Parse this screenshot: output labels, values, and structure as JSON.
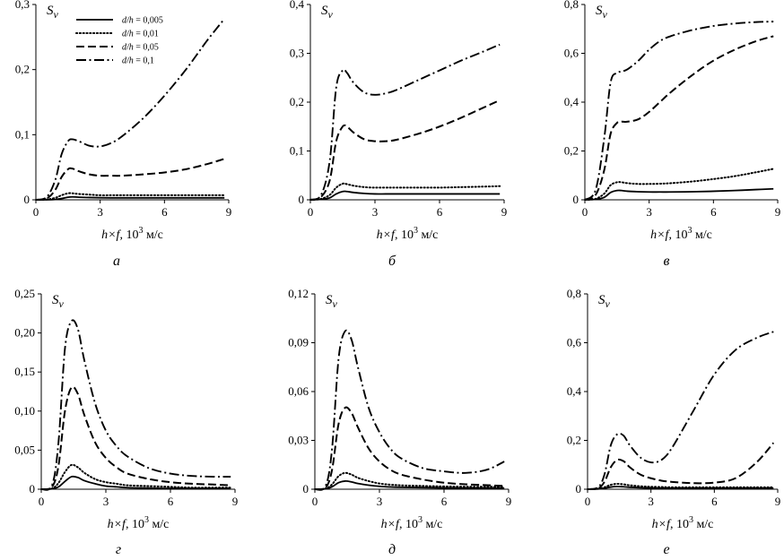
{
  "legend": {
    "prefix": "d/h",
    "entries": [
      {
        "label": "d/h = 0,005",
        "value": "= 0,005",
        "style": "solid"
      },
      {
        "label": "d/h = 0,01",
        "value": "= 0,01",
        "style": "dotted"
      },
      {
        "label": "d/h = 0,05",
        "value": "= 0,05",
        "style": "dashed"
      },
      {
        "label": "d/h = 0,1",
        "value": "= 0,1",
        "style": "dashdot"
      }
    ]
  },
  "x_axis": {
    "label_italic": "h×f",
    "label_rest": ", 10",
    "label_exp": "3",
    "label_unit": " м/с"
  },
  "chart_data": [
    {
      "type": "line",
      "panel_label": "а",
      "ylabel": "S",
      "ylabel_sub": "v",
      "ylim": [
        0,
        0.3
      ],
      "xlim": [
        0,
        9
      ],
      "yticks": [
        "0",
        "0,1",
        "0,2",
        "0,3"
      ],
      "ytick_values": [
        0,
        0.1,
        0.2,
        0.3
      ],
      "xticks": [
        "0",
        "3",
        "6",
        "9"
      ],
      "xtick_values": [
        0,
        3,
        6,
        9
      ],
      "x": [
        0,
        0.5,
        0.9,
        1.2,
        1.5,
        1.7,
        2.0,
        2.5,
        3.0,
        3.5,
        4.0,
        5.0,
        6.0,
        7.0,
        8.0,
        8.8
      ],
      "series": [
        {
          "name": "d/h = 0,005",
          "style": "solid",
          "values": [
            0,
            0,
            0.0005,
            0.002,
            0.004,
            0.0045,
            0.004,
            0.0035,
            0.0032,
            0.003,
            0.003,
            0.003,
            0.003,
            0.003,
            0.003,
            0.003
          ]
        },
        {
          "name": "d/h = 0,01",
          "style": "dotted",
          "values": [
            0,
            0.0005,
            0.003,
            0.007,
            0.01,
            0.01,
            0.009,
            0.008,
            0.007,
            0.007,
            0.007,
            0.007,
            0.007,
            0.007,
            0.007,
            0.007
          ]
        },
        {
          "name": "d/h = 0,05",
          "style": "dashed",
          "values": [
            0,
            0.002,
            0.015,
            0.035,
            0.047,
            0.048,
            0.044,
            0.039,
            0.037,
            0.037,
            0.037,
            0.039,
            0.042,
            0.047,
            0.055,
            0.063
          ]
        },
        {
          "name": "d/h = 0,1",
          "style": "dashdot",
          "values": [
            0,
            0.004,
            0.03,
            0.07,
            0.09,
            0.093,
            0.09,
            0.083,
            0.082,
            0.087,
            0.097,
            0.125,
            0.16,
            0.2,
            0.245,
            0.278
          ]
        }
      ]
    },
    {
      "type": "line",
      "panel_label": "б",
      "ylabel": "S",
      "ylabel_sub": "v",
      "ylim": [
        0,
        0.4
      ],
      "xlim": [
        0,
        9
      ],
      "yticks": [
        "0",
        "0,1",
        "0,2",
        "0,3",
        "0,4"
      ],
      "ytick_values": [
        0,
        0.1,
        0.2,
        0.3,
        0.4
      ],
      "xticks": [
        "0",
        "3",
        "6",
        "9"
      ],
      "xtick_values": [
        0,
        3,
        6,
        9
      ],
      "x": [
        0,
        0.5,
        0.9,
        1.2,
        1.5,
        1.7,
        2.0,
        2.5,
        3.0,
        3.5,
        4.0,
        5.0,
        6.0,
        7.0,
        8.0,
        8.8
      ],
      "series": [
        {
          "name": "d/h = 0,005",
          "style": "solid",
          "values": [
            0,
            0.001,
            0.004,
            0.012,
            0.017,
            0.017,
            0.015,
            0.013,
            0.012,
            0.012,
            0.012,
            0.012,
            0.012,
            0.012,
            0.012,
            0.012
          ]
        },
        {
          "name": "d/h = 0,01",
          "style": "dotted",
          "values": [
            0,
            0.002,
            0.01,
            0.025,
            0.033,
            0.032,
            0.029,
            0.026,
            0.025,
            0.025,
            0.025,
            0.025,
            0.025,
            0.026,
            0.027,
            0.028
          ]
        },
        {
          "name": "d/h = 0,05",
          "style": "dashed",
          "values": [
            0,
            0.006,
            0.04,
            0.12,
            0.15,
            0.15,
            0.138,
            0.124,
            0.12,
            0.12,
            0.123,
            0.135,
            0.15,
            0.168,
            0.188,
            0.204
          ]
        },
        {
          "name": "d/h = 0,1",
          "style": "dashdot",
          "values": [
            0,
            0.01,
            0.08,
            0.23,
            0.265,
            0.26,
            0.24,
            0.22,
            0.215,
            0.218,
            0.225,
            0.245,
            0.265,
            0.285,
            0.303,
            0.318
          ]
        }
      ]
    },
    {
      "type": "line",
      "panel_label": "в",
      "ylabel": "S",
      "ylabel_sub": "v",
      "ylim": [
        0,
        0.8
      ],
      "xlim": [
        0,
        9
      ],
      "yticks": [
        "0",
        "0,2",
        "0,4",
        "0,6",
        "0,8"
      ],
      "ytick_values": [
        0,
        0.2,
        0.4,
        0.6,
        0.8
      ],
      "xticks": [
        "0",
        "3",
        "6",
        "9"
      ],
      "xtick_values": [
        0,
        3,
        6,
        9
      ],
      "x": [
        0,
        0.5,
        0.9,
        1.2,
        1.5,
        1.7,
        2.0,
        2.5,
        3.0,
        3.5,
        4.0,
        5.0,
        6.0,
        7.0,
        8.0,
        8.8
      ],
      "series": [
        {
          "name": "d/h = 0,005",
          "style": "solid",
          "values": [
            0,
            0.002,
            0.01,
            0.03,
            0.038,
            0.038,
            0.035,
            0.033,
            0.032,
            0.032,
            0.032,
            0.033,
            0.035,
            0.038,
            0.042,
            0.045
          ]
        },
        {
          "name": "d/h = 0,01",
          "style": "dotted",
          "values": [
            0,
            0.004,
            0.025,
            0.06,
            0.072,
            0.072,
            0.068,
            0.065,
            0.065,
            0.066,
            0.068,
            0.075,
            0.085,
            0.097,
            0.113,
            0.127
          ]
        },
        {
          "name": "d/h = 0,05",
          "style": "dashed",
          "values": [
            0,
            0.02,
            0.12,
            0.27,
            0.315,
            0.32,
            0.32,
            0.33,
            0.36,
            0.4,
            0.44,
            0.51,
            0.57,
            0.615,
            0.65,
            0.67
          ]
        },
        {
          "name": "d/h = 0,1",
          "style": "dashdot",
          "values": [
            0,
            0.04,
            0.25,
            0.48,
            0.52,
            0.525,
            0.535,
            0.57,
            0.615,
            0.65,
            0.67,
            0.695,
            0.712,
            0.722,
            0.728,
            0.73
          ]
        }
      ]
    },
    {
      "type": "line",
      "panel_label": "г",
      "ylabel": "S",
      "ylabel_sub": "v",
      "ylim": [
        0,
        0.25
      ],
      "xlim": [
        0,
        9
      ],
      "yticks": [
        "0",
        "0,05",
        "0,10",
        "0,15",
        "0,20",
        "0,25"
      ],
      "ytick_values": [
        0,
        0.05,
        0.1,
        0.15,
        0.2,
        0.25
      ],
      "xticks": [
        "0",
        "3",
        "6",
        "9"
      ],
      "xtick_values": [
        0,
        3,
        6,
        9
      ],
      "x": [
        0,
        0.5,
        0.8,
        1.1,
        1.4,
        1.7,
        2.0,
        2.5,
        3.0,
        3.5,
        4.0,
        5.0,
        6.0,
        7.0,
        8.0,
        8.8
      ],
      "series": [
        {
          "name": "d/h = 0,005",
          "style": "solid",
          "values": [
            0,
            0.0005,
            0.003,
            0.01,
            0.016,
            0.015,
            0.011,
            0.007,
            0.004,
            0.003,
            0.002,
            0.0015,
            0.001,
            0.001,
            0.001,
            0.001
          ]
        },
        {
          "name": "d/h = 0,01",
          "style": "dotted",
          "values": [
            0,
            0.001,
            0.008,
            0.022,
            0.031,
            0.028,
            0.021,
            0.013,
            0.009,
            0.007,
            0.005,
            0.004,
            0.003,
            0.002,
            0.002,
            0.002
          ]
        },
        {
          "name": "d/h = 0,05",
          "style": "dashed",
          "values": [
            0,
            0.003,
            0.03,
            0.1,
            0.13,
            0.122,
            0.095,
            0.06,
            0.04,
            0.028,
            0.02,
            0.013,
            0.009,
            0.007,
            0.006,
            0.005
          ]
        },
        {
          "name": "d/h = 0,1",
          "style": "dashdot",
          "values": [
            0,
            0.005,
            0.06,
            0.18,
            0.215,
            0.205,
            0.165,
            0.11,
            0.075,
            0.055,
            0.042,
            0.027,
            0.02,
            0.017,
            0.016,
            0.016
          ]
        }
      ]
    },
    {
      "type": "line",
      "panel_label": "д",
      "ylabel": "S",
      "ylabel_sub": "v",
      "ylim": [
        0,
        0.12
      ],
      "xlim": [
        0,
        9
      ],
      "yticks": [
        "0",
        "0,03",
        "0,06",
        "0,09",
        "0,12"
      ],
      "ytick_values": [
        0,
        0.03,
        0.06,
        0.09,
        0.12
      ],
      "xticks": [
        "0",
        "3",
        "6",
        "9"
      ],
      "xtick_values": [
        0,
        3,
        6,
        9
      ],
      "x": [
        0,
        0.5,
        0.8,
        1.1,
        1.4,
        1.7,
        2.0,
        2.5,
        3.0,
        3.5,
        4.0,
        5.0,
        6.0,
        7.0,
        8.0,
        8.8
      ],
      "series": [
        {
          "name": "d/h = 0,005",
          "style": "solid",
          "values": [
            0,
            0.0002,
            0.0015,
            0.004,
            0.005,
            0.0045,
            0.0035,
            0.0025,
            0.0018,
            0.0014,
            0.0012,
            0.001,
            0.0008,
            0.0007,
            0.0007,
            0.0007
          ]
        },
        {
          "name": "d/h = 0,01",
          "style": "dotted",
          "values": [
            0,
            0.0004,
            0.003,
            0.008,
            0.01,
            0.009,
            0.007,
            0.005,
            0.0035,
            0.0028,
            0.0024,
            0.002,
            0.0017,
            0.0015,
            0.0015,
            0.0015
          ]
        },
        {
          "name": "d/h = 0,05",
          "style": "dashed",
          "values": [
            0,
            0.001,
            0.012,
            0.04,
            0.05,
            0.047,
            0.038,
            0.025,
            0.017,
            0.012,
            0.009,
            0.006,
            0.004,
            0.003,
            0.0025,
            0.002
          ]
        },
        {
          "name": "d/h = 0,1",
          "style": "dashdot",
          "values": [
            0,
            0.002,
            0.025,
            0.08,
            0.097,
            0.092,
            0.075,
            0.05,
            0.035,
            0.025,
            0.019,
            0.013,
            0.011,
            0.01,
            0.012,
            0.017
          ]
        }
      ]
    },
    {
      "type": "line",
      "panel_label": "е",
      "ylabel": "S",
      "ylabel_sub": "v",
      "ylim": [
        0,
        0.8
      ],
      "xlim": [
        0,
        9
      ],
      "yticks": [
        "0",
        "0,2",
        "0,4",
        "0,6",
        "0,8"
      ],
      "ytick_values": [
        0,
        0.2,
        0.4,
        0.6,
        0.8
      ],
      "xticks": [
        "0",
        "3",
        "6",
        "9"
      ],
      "xtick_values": [
        0,
        3,
        6,
        9
      ],
      "x": [
        0,
        0.5,
        0.8,
        1.1,
        1.4,
        1.7,
        2.0,
        2.5,
        3.0,
        3.5,
        4.0,
        5.0,
        6.0,
        7.0,
        8.0,
        8.8
      ],
      "series": [
        {
          "name": "d/h = 0,005",
          "style": "solid",
          "values": [
            0,
            0.001,
            0.004,
            0.009,
            0.011,
            0.01,
            0.008,
            0.006,
            0.005,
            0.004,
            0.004,
            0.004,
            0.004,
            0.004,
            0.004,
            0.004
          ]
        },
        {
          "name": "d/h = 0,01",
          "style": "dotted",
          "values": [
            0,
            0.002,
            0.008,
            0.018,
            0.022,
            0.02,
            0.016,
            0.012,
            0.01,
            0.009,
            0.008,
            0.008,
            0.008,
            0.008,
            0.008,
            0.008
          ]
        },
        {
          "name": "d/h = 0,05",
          "style": "dashed",
          "values": [
            0,
            0.004,
            0.03,
            0.09,
            0.12,
            0.115,
            0.09,
            0.06,
            0.045,
            0.035,
            0.03,
            0.025,
            0.027,
            0.045,
            0.11,
            0.19
          ]
        },
        {
          "name": "d/h = 0,1",
          "style": "dashdot",
          "values": [
            0,
            0.008,
            0.06,
            0.18,
            0.225,
            0.22,
            0.18,
            0.13,
            0.11,
            0.12,
            0.17,
            0.32,
            0.47,
            0.57,
            0.62,
            0.645
          ]
        }
      ]
    }
  ]
}
